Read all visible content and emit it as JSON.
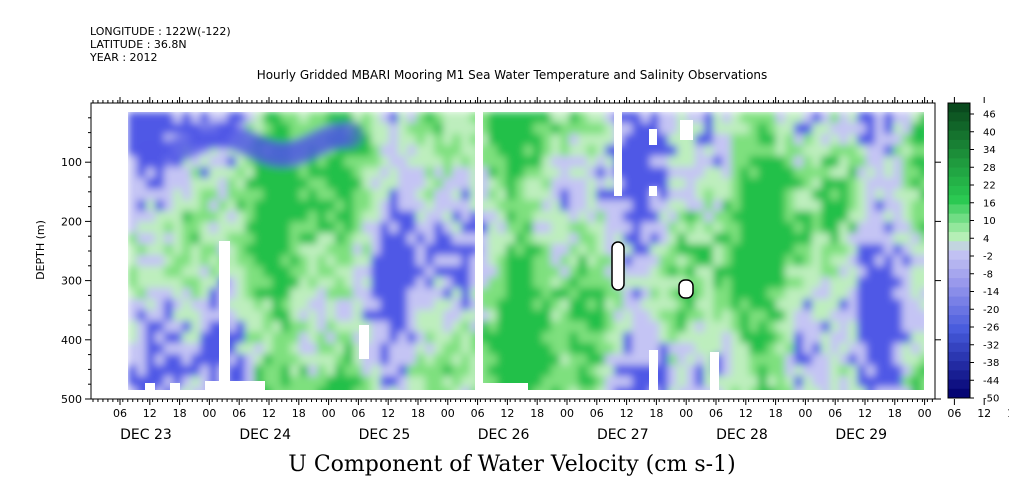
{
  "header": {
    "longitude": "LONGITUDE : 122W(-122)",
    "latitude": "LATITUDE : 36.8N",
    "year": "YEAR : 2012"
  },
  "chart_data": {
    "type": "heatmap",
    "title": "Hourly Gridded MBARI Mooring M1 Sea Water Temperature and Salinity Observations",
    "xlabel": "U Component of Water Velocity (cm s-1)",
    "ylabel": "DEPTH (m)",
    "ylim": [
      500,
      0
    ],
    "y_ticks": [
      100,
      200,
      300,
      400,
      500
    ],
    "x_hour_ticks": [
      "06",
      "12",
      "18",
      "00",
      "06",
      "12",
      "18",
      "00",
      "06",
      "12",
      "18",
      "00",
      "06",
      "12",
      "18",
      "00",
      "06",
      "12",
      "18",
      "00",
      "06",
      "12",
      "18",
      "00",
      "06",
      "12",
      "18",
      "00",
      "06",
      "12",
      "18",
      "00"
    ],
    "date_labels": [
      "DEC 23",
      "DEC 24",
      "DEC 25",
      "DEC 26",
      "DEC 27",
      "DEC 28",
      "DEC 29"
    ],
    "colorbar": {
      "levels": [
        46,
        40,
        34,
        28,
        22,
        16,
        10,
        4,
        -2,
        -8,
        -14,
        -20,
        -26,
        -32,
        -38,
        -44,
        -50
      ],
      "colors": {
        "dark_green": "#0a4a1e",
        "green": "#22c04a",
        "light_green": "#b4f0b4",
        "light_blue": "#c4c4f4",
        "blue": "#5058e6",
        "dark_blue": "#050574"
      }
    }
  }
}
